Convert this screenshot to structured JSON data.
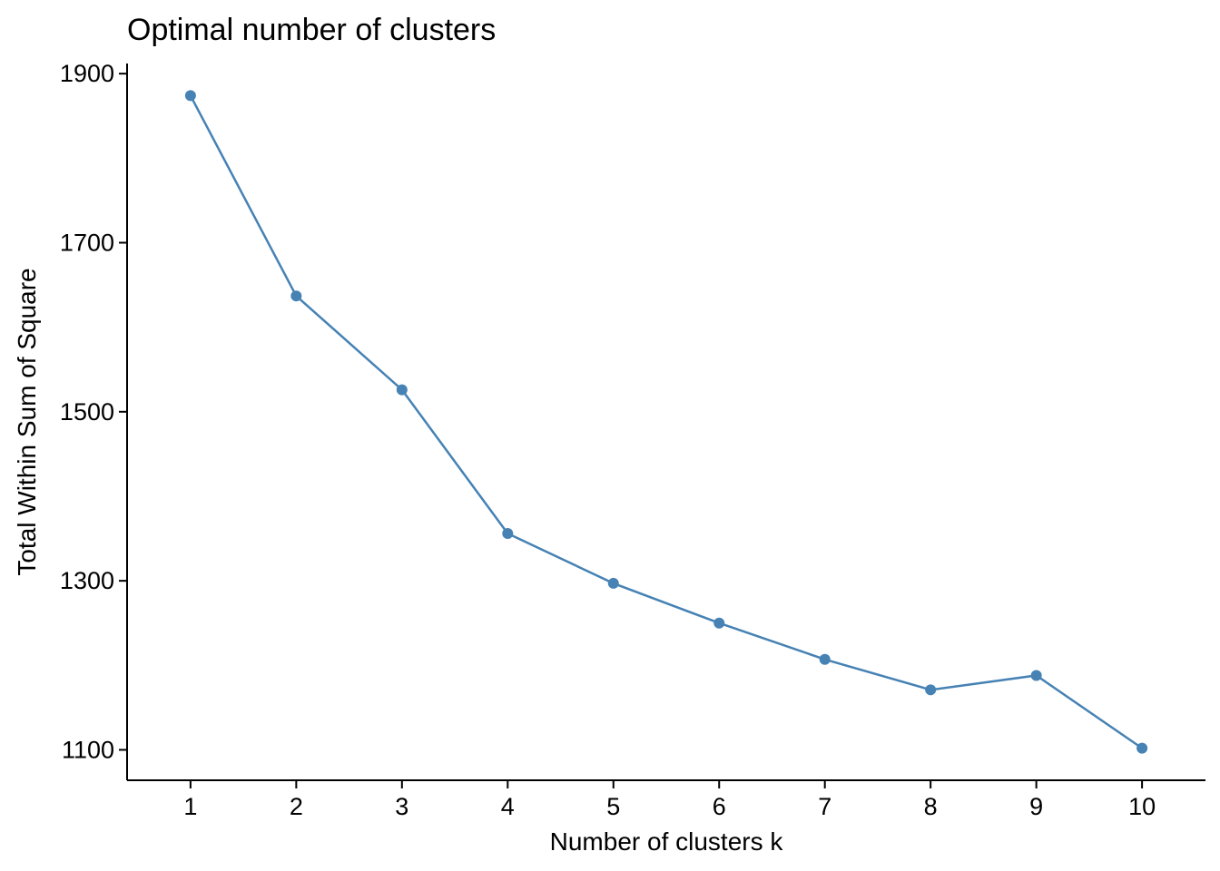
{
  "chart_data": {
    "type": "line",
    "title": "Optimal number of clusters",
    "xlabel": "Number of clusters k",
    "ylabel": "Total Within Sum of Square",
    "x": [
      1,
      2,
      3,
      4,
      5,
      6,
      7,
      8,
      9,
      10
    ],
    "x_tick_labels": [
      "1",
      "2",
      "3",
      "4",
      "5",
      "6",
      "7",
      "8",
      "9",
      "10"
    ],
    "y_ticks": [
      1100,
      1300,
      1500,
      1700,
      1900
    ],
    "xlim": [
      0.4,
      10.6
    ],
    "ylim": [
      1064,
      1912
    ],
    "grid": false,
    "legend": "none",
    "series": [
      {
        "color": "#4682B4",
        "values": [
          1874,
          1637,
          1526,
          1356,
          1297,
          1250,
          1207,
          1171,
          1188,
          1102
        ]
      }
    ]
  }
}
